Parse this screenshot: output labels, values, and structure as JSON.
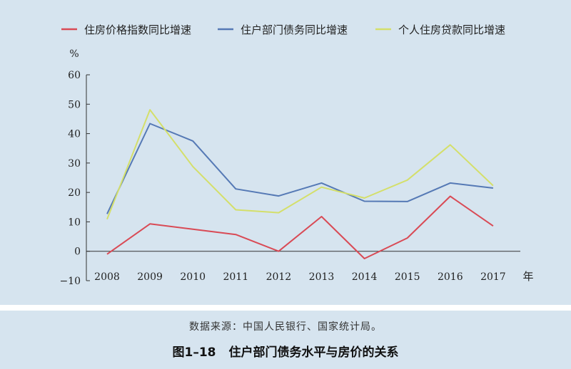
{
  "chart_data": {
    "type": "line",
    "categories": [
      "2008",
      "2009",
      "2010",
      "2011",
      "2012",
      "2013",
      "2014",
      "2015",
      "2016",
      "2017"
    ],
    "series": [
      {
        "name": "住房价格指数同比增速",
        "color": "#d94a55",
        "values": [
          -1,
          9.3,
          7.5,
          5.7,
          0,
          11.8,
          -2.5,
          4.5,
          18.7,
          8.6
        ]
      },
      {
        "name": "住户部门债务同比增速",
        "color": "#5579b5",
        "values": [
          12.7,
          43.4,
          37.5,
          21.2,
          18.8,
          23.2,
          17,
          16.9,
          23.2,
          21.5
        ]
      },
      {
        "name": "个人住房贷款同比增速",
        "color": "#d4df6a",
        "values": [
          10.9,
          48.1,
          28.8,
          14.1,
          13.1,
          21.8,
          18.1,
          24.2,
          36.2,
          22.3
        ]
      }
    ],
    "ylabel": "%",
    "xlabel": "年",
    "ylim": [
      -10,
      60
    ],
    "yticks": [
      60,
      50,
      40,
      30,
      20,
      10,
      0,
      -10
    ],
    "legend_position": "top",
    "grid": false
  },
  "caption": {
    "source": "数据来源：中国人民银行、国家统计局。",
    "figure_number": "图1–18",
    "figure_title": "住户部门债务水平与房价的关系"
  }
}
